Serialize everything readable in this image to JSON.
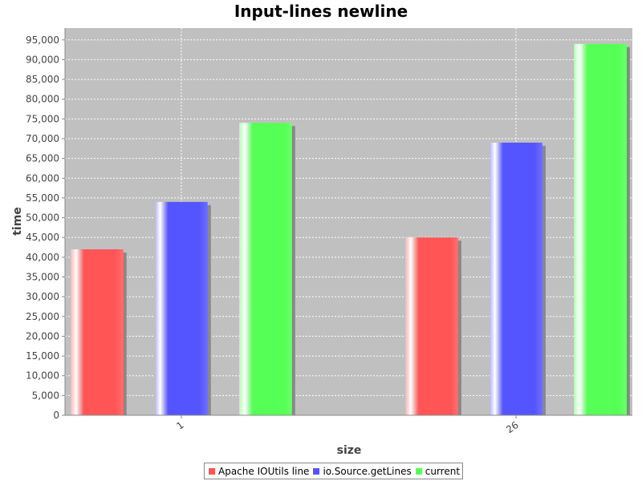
{
  "chart_data": {
    "type": "bar",
    "title": "Input-lines newline",
    "xlabel": "size",
    "ylabel": "time",
    "categories": [
      "1",
      "26"
    ],
    "series": [
      {
        "name": "Apache IOUtils line",
        "color": "#ff5555",
        "values": [
          42000,
          45000
        ]
      },
      {
        "name": "io.Source.getLines",
        "color": "#5555ff",
        "values": [
          54000,
          69000
        ]
      },
      {
        "name": "current",
        "color": "#55ff55",
        "values": [
          74000,
          94000
        ]
      }
    ],
    "ylim": [
      0,
      98000
    ],
    "yticks": [
      0,
      5000,
      10000,
      15000,
      20000,
      25000,
      30000,
      35000,
      40000,
      45000,
      50000,
      55000,
      60000,
      65000,
      70000,
      75000,
      80000,
      85000,
      90000,
      95000
    ],
    "grid": true,
    "legend_position": "bottom-center",
    "plot_background": "#c0c0c0"
  }
}
